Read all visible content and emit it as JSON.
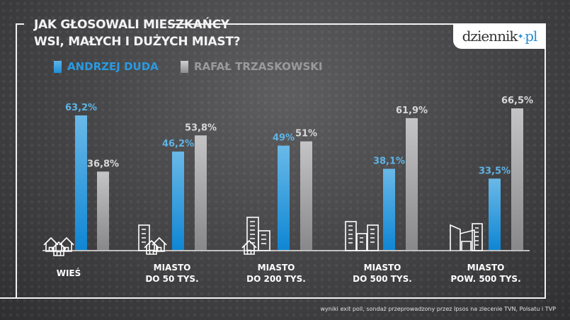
{
  "title_line1": "JAK GŁOSOWALI MIESZKAŃCY",
  "title_line2": "WSI, MAŁYCH I DUŻYCH MIAST?",
  "logo": {
    "text": "dziennik",
    "suffix": "pl"
  },
  "colors": {
    "duda": "#1e8fd8",
    "trzaskowski": "#a8a8aa",
    "duda_label": "#5fb4e6",
    "trzaskowski_label": "#d8d8d8"
  },
  "footnote": "wyniki exit poll, sondaż przeprowadzony przez Ipsos na zlecenie TVN, Polsatu i TVP",
  "chart_data": {
    "type": "bar",
    "categories": [
      [
        "WIEŚ"
      ],
      [
        "MIASTO",
        "DO 50 TYS."
      ],
      [
        "MIASTO",
        "DO 200 TYS."
      ],
      [
        "MIASTO",
        "DO 500 TYS."
      ],
      [
        "MIASTO",
        "POW. 500 TYS."
      ]
    ],
    "category_icons": [
      "houses-icon",
      "small-town-icon",
      "town-icon",
      "city-icon",
      "metropolis-icon"
    ],
    "series": [
      {
        "name": "ANDRZEJ DUDA",
        "values": [
          63.2,
          46.2,
          49,
          38.1,
          33.5
        ],
        "labels": [
          "63,2%",
          "46,2%",
          "49%",
          "38,1%",
          "33,5%"
        ]
      },
      {
        "name": "RAFAŁ TRZASKOWSKI",
        "values": [
          36.8,
          53.8,
          51,
          61.9,
          66.5
        ],
        "labels": [
          "36,8%",
          "53,8%",
          "51%",
          "61,9%",
          "66,5%"
        ]
      }
    ],
    "unit": "%",
    "ylim": [
      0,
      70
    ],
    "grid": false,
    "legend": "top-left"
  }
}
